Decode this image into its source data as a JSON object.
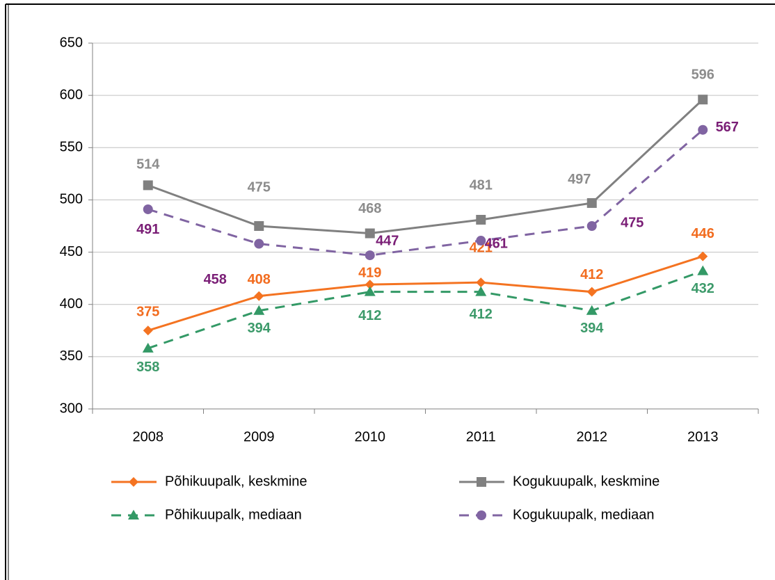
{
  "chart_data": {
    "type": "line",
    "categories": [
      "2008",
      "2009",
      "2010",
      "2011",
      "2012",
      "2013"
    ],
    "series": [
      {
        "name": "Põhikuupalk, keskmine",
        "color": "#f47321",
        "values": [
          375,
          408,
          419,
          421,
          412,
          446
        ]
      },
      {
        "name": "Kogukuupalk, keskmine",
        "color": "#808080",
        "values": [
          514,
          475,
          468,
          481,
          497,
          596
        ]
      },
      {
        "name": "Põhikuupalk, mediaan",
        "color": "#339966",
        "values": [
          358,
          394,
          412,
          412,
          394,
          432
        ]
      },
      {
        "name": "Kogukuupalk, mediaan",
        "color": "#8064a2",
        "values": [
          491,
          458,
          447,
          461,
          475,
          567
        ]
      }
    ],
    "ylim": [
      300,
      650
    ],
    "yticks": [
      300,
      350,
      400,
      450,
      500,
      550,
      600,
      650
    ],
    "grid": true,
    "legend": "bottom"
  }
}
